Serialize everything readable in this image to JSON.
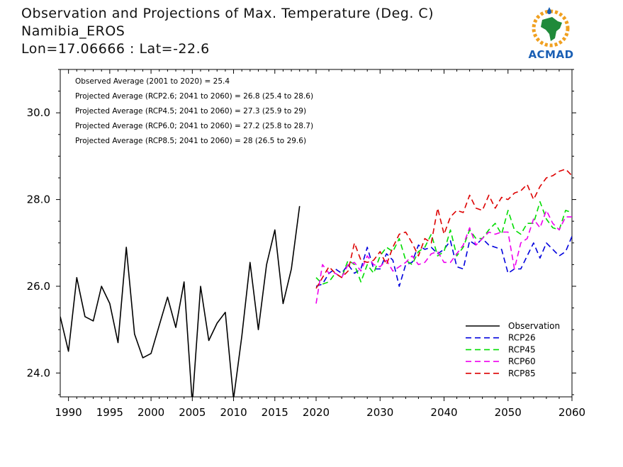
{
  "title": {
    "line1": "Observation and Projections of Max. Temperature (Deg. C)",
    "line2": "Namibia_EROS",
    "line3": "Lon=17.06666 : Lat=-22.6"
  },
  "logo": {
    "text": "ACMAD",
    "icon": "africa-map-logo"
  },
  "annotations": [
    "Observed Average (2001 to 2020) = 25.4",
    "Projected Average (RCP2.6; 2041 to 2060) = 26.8 (25.4 to 28.6)",
    "Projected Average (RCP4.5; 2041 to 2060) = 27.3 (25.9 to 29)",
    "Projected Average (RCP6.0; 2041 to 2060) = 27.2 (25.8 to 28.7)",
    "Projected Average (RCP8.5; 2041 to 2060) = 28 (26.5 to 29.6)"
  ],
  "colors": {
    "Observation": "#000000",
    "RCP26": "#0000dd",
    "RCP45": "#00dd00",
    "RCP60": "#ee00ee",
    "RCP85": "#dd0000"
  },
  "chart_data": {
    "type": "line",
    "xlim": [
      1989,
      2060
    ],
    "ylim": [
      23.45,
      31.0
    ],
    "x_ticks": [
      1990,
      1995,
      2000,
      2005,
      2010,
      2015,
      2020,
      2030,
      2040,
      2050,
      2060
    ],
    "y_ticks": [
      24.0,
      26.0,
      28.0,
      30.0
    ],
    "y_tick_labels": [
      "24.0",
      "26.0",
      "28.0",
      "30.0"
    ],
    "legend_position": "bottom-right",
    "series": [
      {
        "name": "Observation",
        "style": "solid",
        "x": [
          1989,
          1990,
          1991,
          1992,
          1993,
          1994,
          1995,
          1996,
          1997,
          1998,
          1999,
          2000,
          2001,
          2002,
          2003,
          2004,
          2005,
          2006,
          2007,
          2008,
          2009,
          2010,
          2011,
          2012,
          2013,
          2014,
          2015,
          2016,
          2017,
          2018,
          2019,
          2020
        ],
        "y": [
          25.3,
          24.5,
          26.2,
          25.3,
          25.2,
          26.0,
          25.6,
          24.7,
          26.9,
          24.9,
          24.35,
          24.45,
          25.1,
          25.75,
          25.05,
          26.1,
          23.3,
          26.0,
          24.75,
          25.15,
          25.4,
          23.4,
          24.85,
          26.55,
          25.0,
          26.5,
          27.3,
          25.6,
          26.4,
          27.85,
          null,
          null
        ]
      },
      {
        "name": "RCP26",
        "style": "dashed",
        "x": [
          2020,
          2021,
          2022,
          2023,
          2024,
          2025,
          2026,
          2027,
          2028,
          2029,
          2030,
          2031,
          2032,
          2033,
          2034,
          2035,
          2036,
          2037,
          2038,
          2039,
          2040,
          2041,
          2042,
          2043,
          2044,
          2045,
          2046,
          2047,
          2048,
          2049,
          2050,
          2051,
          2052,
          2053,
          2054,
          2055,
          2056,
          2057,
          2058,
          2059,
          2060
        ],
        "y": [
          26.0,
          26.05,
          26.3,
          26.4,
          26.3,
          26.5,
          26.3,
          26.4,
          26.9,
          26.4,
          26.4,
          26.75,
          26.6,
          26.0,
          26.5,
          26.55,
          26.95,
          26.85,
          26.9,
          26.75,
          26.85,
          27.05,
          26.45,
          26.4,
          27.05,
          26.95,
          27.1,
          26.95,
          26.9,
          26.85,
          26.3,
          26.4,
          26.4,
          26.7,
          27.0,
          26.65,
          27.0,
          26.85,
          26.7,
          26.8,
          27.15
        ]
      },
      {
        "name": "RCP45",
        "style": "dashed",
        "x": [
          2020,
          2021,
          2022,
          2023,
          2024,
          2025,
          2026,
          2027,
          2028,
          2029,
          2030,
          2031,
          2032,
          2033,
          2034,
          2035,
          2036,
          2037,
          2038,
          2039,
          2040,
          2041,
          2042,
          2043,
          2044,
          2045,
          2046,
          2047,
          2048,
          2049,
          2050,
          2051,
          2052,
          2053,
          2054,
          2055,
          2056,
          2057,
          2058,
          2059,
          2060
        ],
        "y": [
          26.2,
          26.05,
          26.1,
          26.3,
          26.2,
          26.6,
          26.5,
          26.1,
          26.5,
          26.3,
          26.7,
          26.9,
          26.8,
          27.1,
          26.6,
          26.5,
          26.8,
          26.9,
          27.2,
          26.7,
          26.8,
          27.3,
          26.7,
          26.9,
          27.3,
          27.1,
          27.1,
          27.3,
          27.45,
          27.2,
          27.75,
          27.3,
          27.2,
          27.45,
          27.45,
          27.95,
          27.55,
          27.35,
          27.3,
          27.75,
          27.7
        ]
      },
      {
        "name": "RCP60",
        "style": "dashed",
        "x": [
          2020,
          2021,
          2022,
          2023,
          2024,
          2025,
          2026,
          2027,
          2028,
          2029,
          2030,
          2031,
          2032,
          2033,
          2034,
          2035,
          2036,
          2037,
          2038,
          2039,
          2040,
          2041,
          2042,
          2043,
          2044,
          2045,
          2046,
          2047,
          2048,
          2049,
          2050,
          2051,
          2052,
          2053,
          2054,
          2055,
          2056,
          2057,
          2058,
          2059,
          2060
        ],
        "y": [
          25.6,
          26.5,
          26.3,
          26.3,
          26.2,
          26.5,
          26.55,
          26.35,
          26.7,
          26.5,
          26.45,
          26.6,
          26.35,
          26.45,
          26.55,
          26.7,
          26.5,
          26.55,
          26.75,
          26.8,
          26.55,
          26.55,
          26.75,
          26.95,
          27.35,
          26.95,
          27.1,
          27.25,
          27.2,
          27.25,
          27.25,
          26.4,
          27.0,
          27.1,
          27.55,
          27.35,
          27.75,
          27.45,
          27.3,
          27.6,
          27.6
        ]
      },
      {
        "name": "RCP85",
        "style": "dashed",
        "x": [
          2020,
          2021,
          2022,
          2023,
          2024,
          2025,
          2026,
          2027,
          2028,
          2029,
          2030,
          2031,
          2032,
          2033,
          2034,
          2035,
          2036,
          2037,
          2038,
          2039,
          2040,
          2041,
          2042,
          2043,
          2044,
          2045,
          2046,
          2047,
          2048,
          2049,
          2050,
          2051,
          2052,
          2053,
          2054,
          2055,
          2056,
          2057,
          2058,
          2059,
          2060
        ],
        "y": [
          25.95,
          26.2,
          26.45,
          26.3,
          26.2,
          26.35,
          27.0,
          26.6,
          26.55,
          26.6,
          26.8,
          26.5,
          26.9,
          27.2,
          27.25,
          27.0,
          26.7,
          27.1,
          27.0,
          27.8,
          27.2,
          27.6,
          27.75,
          27.7,
          28.1,
          27.8,
          27.75,
          28.1,
          27.8,
          28.05,
          28.0,
          28.15,
          28.2,
          28.35,
          28.0,
          28.3,
          28.5,
          28.55,
          28.65,
          28.7,
          28.55
        ]
      }
    ]
  }
}
